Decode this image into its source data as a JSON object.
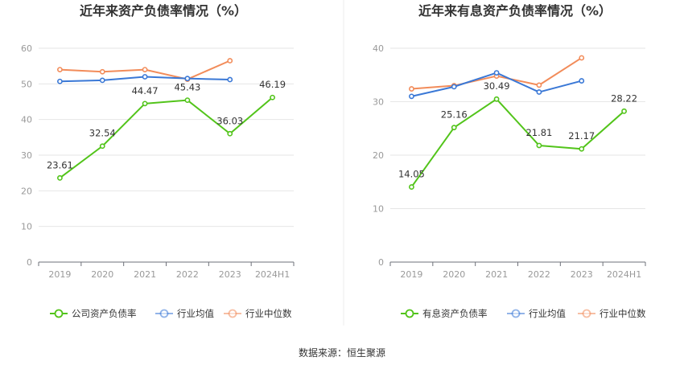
{
  "source_label": "数据来源：恒生聚源",
  "chart_data": [
    {
      "type": "line",
      "title": "近年来资产负债率情况（%）",
      "categories": [
        "2019",
        "2020",
        "2021",
        "2022",
        "2023",
        "2024H1"
      ],
      "ylim": [
        0,
        60
      ],
      "yticks": [
        0,
        10,
        20,
        30,
        40,
        50,
        60
      ],
      "series": [
        {
          "name": "公司资产负债率",
          "color": "#52c41a",
          "labeled": true,
          "values": [
            23.61,
            32.54,
            44.47,
            45.43,
            36.03,
            46.19
          ]
        },
        {
          "name": "行业均值",
          "color": "#3a78d6",
          "labeled": false,
          "values": [
            50.7,
            51.0,
            52.0,
            51.5,
            51.2,
            null
          ]
        },
        {
          "name": "行业中位数",
          "color": "#f28c5a",
          "labeled": false,
          "values": [
            54.0,
            53.4,
            54.0,
            51.3,
            56.5,
            null
          ]
        }
      ]
    },
    {
      "type": "line",
      "title": "近年来有息资产负债率情况（%）",
      "categories": [
        "2019",
        "2020",
        "2021",
        "2022",
        "2023",
        "2024H1"
      ],
      "ylim": [
        0,
        40
      ],
      "yticks": [
        0,
        10,
        20,
        30,
        40
      ],
      "series": [
        {
          "name": "有息资产负债率",
          "color": "#52c41a",
          "labeled": true,
          "values": [
            14.05,
            25.16,
            30.49,
            21.81,
            21.17,
            28.22
          ]
        },
        {
          "name": "行业均值",
          "color": "#3a78d6",
          "labeled": false,
          "values": [
            31.0,
            32.8,
            35.4,
            31.8,
            33.9,
            null
          ]
        },
        {
          "name": "行业中位数",
          "color": "#f28c5a",
          "labeled": false,
          "values": [
            32.4,
            33.0,
            34.8,
            33.1,
            38.2,
            null
          ]
        }
      ]
    }
  ]
}
